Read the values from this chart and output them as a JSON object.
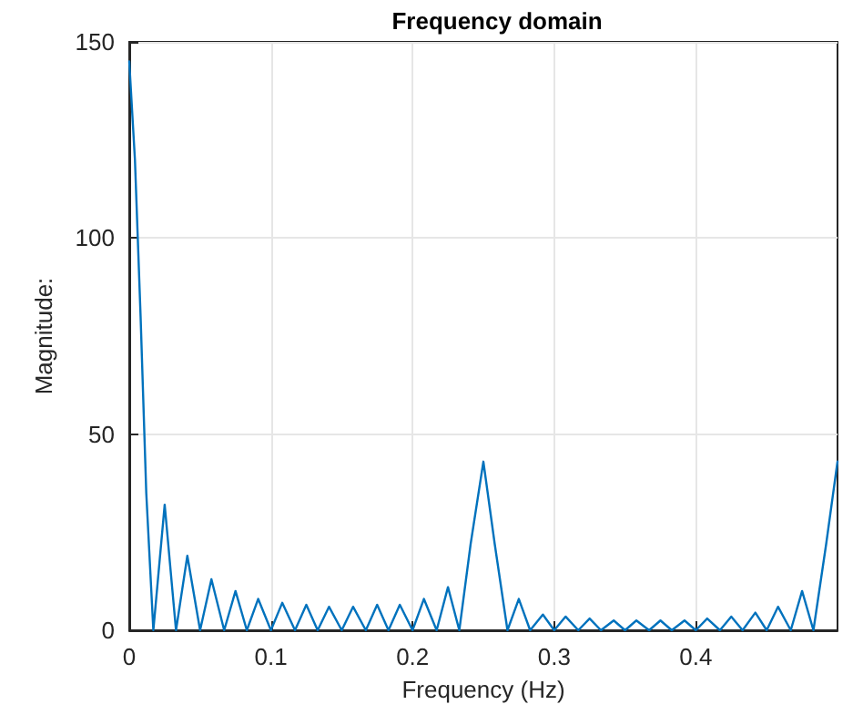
{
  "chart_data": {
    "type": "line",
    "title": "Frequency domain",
    "xlabel": "Frequency (Hz)",
    "ylabel": "Magnitude:",
    "x": [
      0,
      0.004,
      0.008,
      0.012,
      0.017,
      0.025,
      0.033,
      0.041,
      0.05,
      0.058,
      0.067,
      0.075,
      0.083,
      0.091,
      0.1,
      0.108,
      0.117,
      0.125,
      0.133,
      0.141,
      0.15,
      0.158,
      0.167,
      0.175,
      0.183,
      0.191,
      0.2,
      0.208,
      0.217,
      0.225,
      0.233,
      0.241,
      0.25,
      0.258,
      0.267,
      0.275,
      0.283,
      0.292,
      0.3,
      0.308,
      0.317,
      0.325,
      0.333,
      0.342,
      0.35,
      0.358,
      0.367,
      0.375,
      0.383,
      0.392,
      0.4,
      0.408,
      0.417,
      0.425,
      0.433,
      0.442,
      0.45,
      0.458,
      0.467,
      0.475,
      0.483,
      0.492,
      0.5
    ],
    "series": [
      {
        "color": "#0072bd",
        "values": [
          145,
          120,
          80,
          35,
          0,
          32,
          0,
          19,
          0,
          13,
          0,
          10,
          0,
          8,
          0,
          7,
          0,
          6.5,
          0,
          6,
          0,
          6,
          0,
          6.5,
          0,
          6.5,
          0,
          8,
          0,
          11,
          0,
          22,
          43,
          22,
          0,
          8,
          0,
          4,
          0,
          3.5,
          0,
          3,
          0,
          2.5,
          0,
          2.5,
          0,
          2.5,
          0,
          2.5,
          0,
          3,
          0,
          3.5,
          0,
          4.5,
          0,
          6,
          0,
          10,
          0,
          22,
          43
        ]
      }
    ],
    "xlim": [
      0,
      0.5
    ],
    "xticks": [
      0,
      0.1,
      0.2,
      0.3,
      0.4
    ],
    "ylim": [
      0,
      150
    ],
    "yticks": [
      0,
      50,
      100,
      150
    ],
    "grid": true,
    "marker": "none",
    "line_style": "solid"
  }
}
